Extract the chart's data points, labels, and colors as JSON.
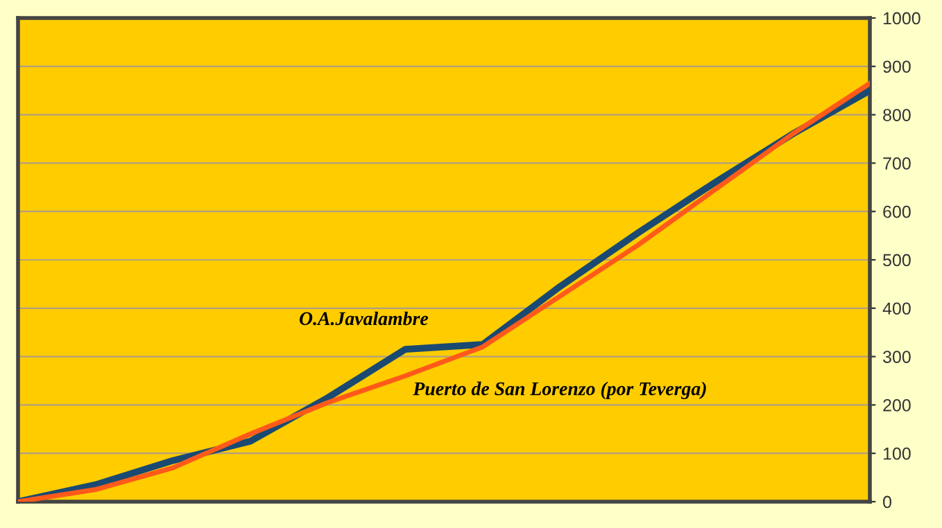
{
  "chart_data": {
    "type": "line",
    "categories": [
      null,
      null,
      null,
      null,
      null,
      null,
      null,
      null,
      null,
      null,
      null,
      null
    ],
    "series": [
      {
        "name": "O.A.Javalambre",
        "color": "#1a4a72",
        "values": [
          0,
          35,
          85,
          125,
          215,
          315,
          325,
          445,
          555,
          660,
          760,
          850
        ]
      },
      {
        "name": "Puerto de San Lorenzo (por Teverga)",
        "color": "#ff5a1a",
        "values": [
          0,
          25,
          70,
          140,
          205,
          260,
          320,
          425,
          530,
          645,
          760,
          865
        ]
      }
    ],
    "ylim": [
      0,
      1000
    ],
    "yticks": [
      0,
      100,
      200,
      300,
      400,
      500,
      600,
      700,
      800,
      900,
      1000
    ],
    "grid": "y",
    "tick_labels": "y",
    "marker": "none",
    "line_style": "solid",
    "legend": false
  }
}
